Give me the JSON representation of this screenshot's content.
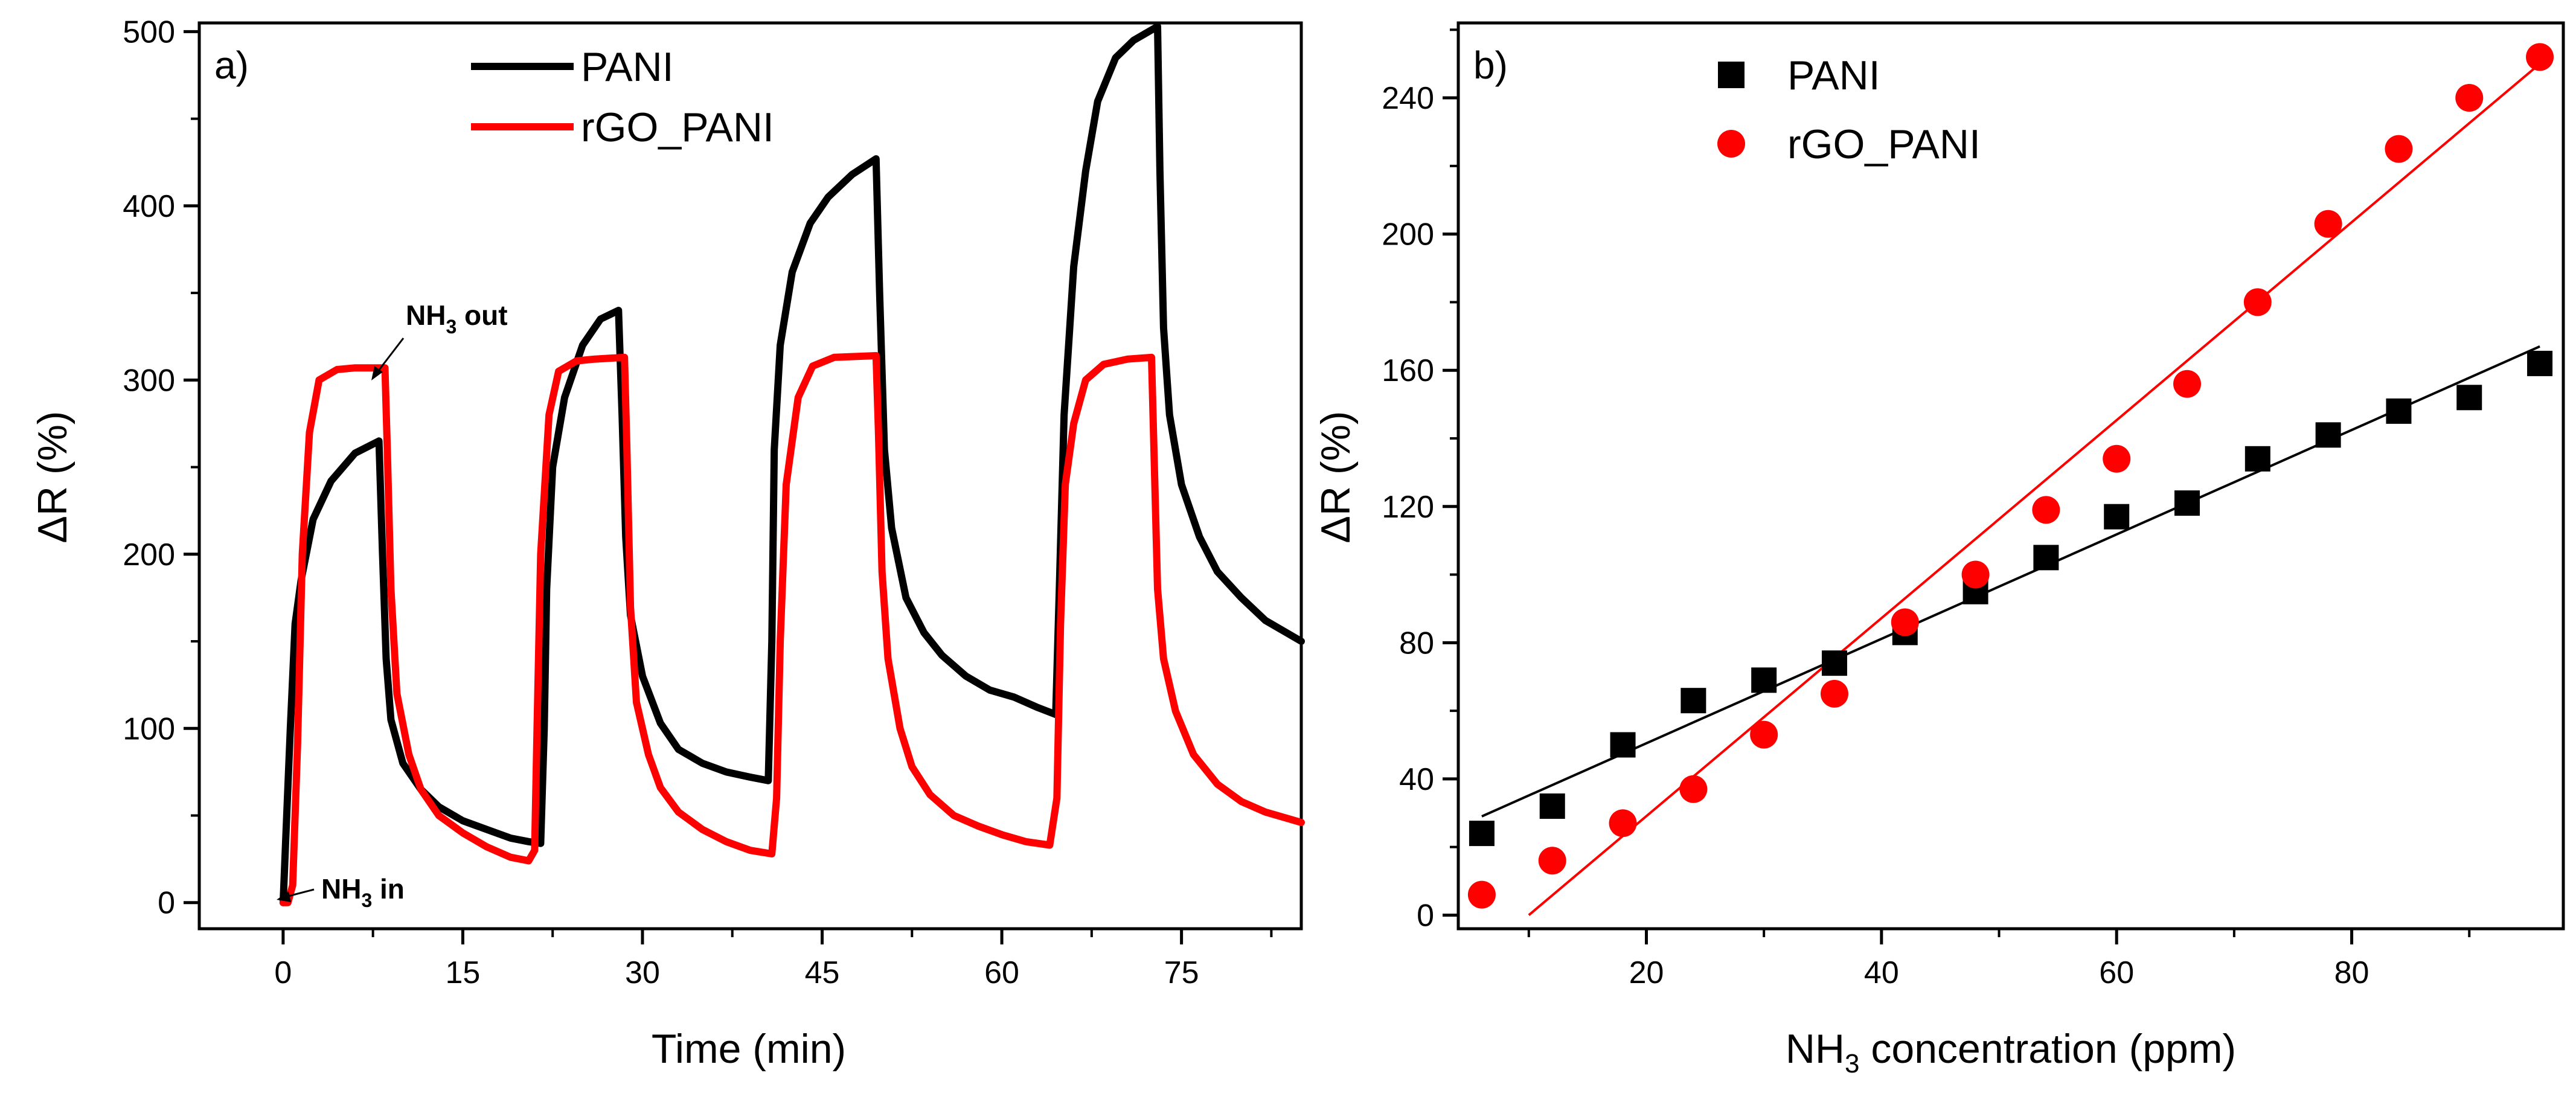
{
  "chart_data": [
    {
      "panel": "a)",
      "type": "line",
      "xlabel": "Time (min)",
      "ylabel": "ΔR (%)",
      "xlim": [
        -7,
        85
      ],
      "ylim": [
        -15,
        505
      ],
      "xticks": [
        0,
        15,
        30,
        45,
        60,
        75
      ],
      "yticks": [
        0,
        100,
        200,
        300,
        400,
        500
      ],
      "legend_position": "top-center",
      "series": [
        {
          "name": "PANI",
          "color": "#000000",
          "x": [
            0,
            0.3,
            0.6,
            1,
            1.5,
            2.5,
            4,
            6,
            8,
            8.3,
            8.6,
            9,
            10,
            11.5,
            13,
            15,
            17,
            19,
            20.5,
            21.5,
            21.8,
            22,
            22.5,
            23.5,
            25,
            26.5,
            28,
            28.3,
            28.6,
            29,
            30,
            31.5,
            33,
            35,
            37,
            39,
            40.5,
            40.8,
            41,
            41.5,
            42.5,
            44,
            45.5,
            47.5,
            49.5,
            49.8,
            50.2,
            50.8,
            52,
            53.5,
            55,
            57,
            59,
            61,
            63,
            64.5,
            64.8,
            65.2,
            66,
            67,
            68,
            69.5,
            71,
            73,
            73.2,
            73.5,
            74,
            75,
            76.5,
            78,
            80,
            82,
            85
          ],
          "y": [
            0,
            50,
            100,
            160,
            185,
            220,
            242,
            258,
            265,
            200,
            140,
            105,
            80,
            65,
            55,
            47,
            42,
            37,
            35,
            34,
            100,
            180,
            250,
            290,
            320,
            335,
            340,
            280,
            210,
            165,
            130,
            103,
            88,
            80,
            75,
            72,
            70,
            150,
            260,
            320,
            362,
            390,
            405,
            418,
            427,
            350,
            260,
            215,
            175,
            155,
            142,
            130,
            122,
            118,
            112,
            108,
            180,
            280,
            365,
            420,
            460,
            485,
            495,
            503,
            420,
            330,
            280,
            240,
            210,
            190,
            175,
            162,
            150
          ]
        },
        {
          "name": "rGO_PANI",
          "color": "#ff0000",
          "x": [
            0,
            0.4,
            0.8,
            1.2,
            1.6,
            2.2,
            3,
            4.5,
            6,
            8.5,
            8.7,
            9,
            9.5,
            10.5,
            11.5,
            13,
            15,
            17,
            19,
            20.5,
            21,
            21.2,
            21.5,
            22.2,
            23,
            24.5,
            26,
            28.5,
            28.7,
            29,
            29.5,
            30.5,
            31.5,
            33,
            35,
            37,
            39,
            40.8,
            41.2,
            41.5,
            42,
            43,
            44.2,
            46,
            49.5,
            49.7,
            50,
            50.5,
            51.5,
            52.5,
            54,
            56,
            58,
            60,
            62,
            64,
            64.6,
            64.9,
            65.3,
            66,
            67,
            68.5,
            70.5,
            72.5,
            72.7,
            73,
            73.5,
            74.5,
            76,
            78,
            80,
            82,
            85
          ],
          "y": [
            0,
            0,
            10,
            90,
            200,
            270,
            300,
            306,
            307,
            307,
            260,
            180,
            120,
            85,
            65,
            50,
            40,
            32,
            26,
            24,
            30,
            100,
            200,
            280,
            305,
            311,
            312,
            313,
            260,
            170,
            115,
            85,
            66,
            52,
            42,
            35,
            30,
            28,
            60,
            150,
            240,
            290,
            308,
            313,
            314,
            270,
            190,
            140,
            100,
            78,
            62,
            50,
            44,
            39,
            35,
            33,
            60,
            160,
            240,
            275,
            300,
            309,
            312,
            313,
            260,
            180,
            140,
            110,
            85,
            68,
            58,
            52,
            46
          ]
        }
      ],
      "annotations": [
        {
          "main": "NH",
          "sub": "3",
          "rest": " out",
          "point": [
            10.2,
            300
          ]
        },
        {
          "main": "NH",
          "sub": "3",
          "rest": " in",
          "point": [
            1.8,
            2
          ]
        }
      ]
    },
    {
      "panel": "b)",
      "type": "scatter",
      "xlabel_main": "NH",
      "xlabel_sub": "3",
      "xlabel_rest": " concentration (ppm)",
      "ylabel": "ΔR (%)",
      "xlim": [
        4,
        98
      ],
      "ylim": [
        -4,
        262
      ],
      "xticks": [
        20,
        40,
        60,
        80
      ],
      "yticks": [
        0,
        40,
        80,
        120,
        160,
        200,
        240
      ],
      "legend_position": "top-left",
      "series": [
        {
          "name": "PANI",
          "color": "#000000",
          "marker": "square",
          "x": [
            6,
            12,
            18,
            24,
            30,
            36,
            42,
            48,
            54,
            60,
            66,
            72,
            78,
            84,
            90,
            96
          ],
          "y": [
            24,
            32,
            50,
            63,
            69,
            74,
            83,
            95,
            105,
            117,
            121,
            134,
            141,
            148,
            152,
            162
          ],
          "fit": {
            "x": [
              6,
              96
            ],
            "y": [
              29,
              167
            ]
          }
        },
        {
          "name": "rGO_PANI",
          "color": "#ff0000",
          "marker": "circle",
          "x": [
            6,
            12,
            18,
            24,
            30,
            36,
            42,
            48,
            54,
            60,
            66,
            72,
            78,
            84,
            90,
            96
          ],
          "y": [
            6,
            16,
            27,
            37,
            53,
            65,
            86,
            100,
            119,
            134,
            156,
            180,
            203,
            225,
            240,
            252
          ],
          "fit": {
            "x": [
              10,
              96
            ],
            "y": [
              0,
              250
            ]
          }
        }
      ]
    }
  ]
}
